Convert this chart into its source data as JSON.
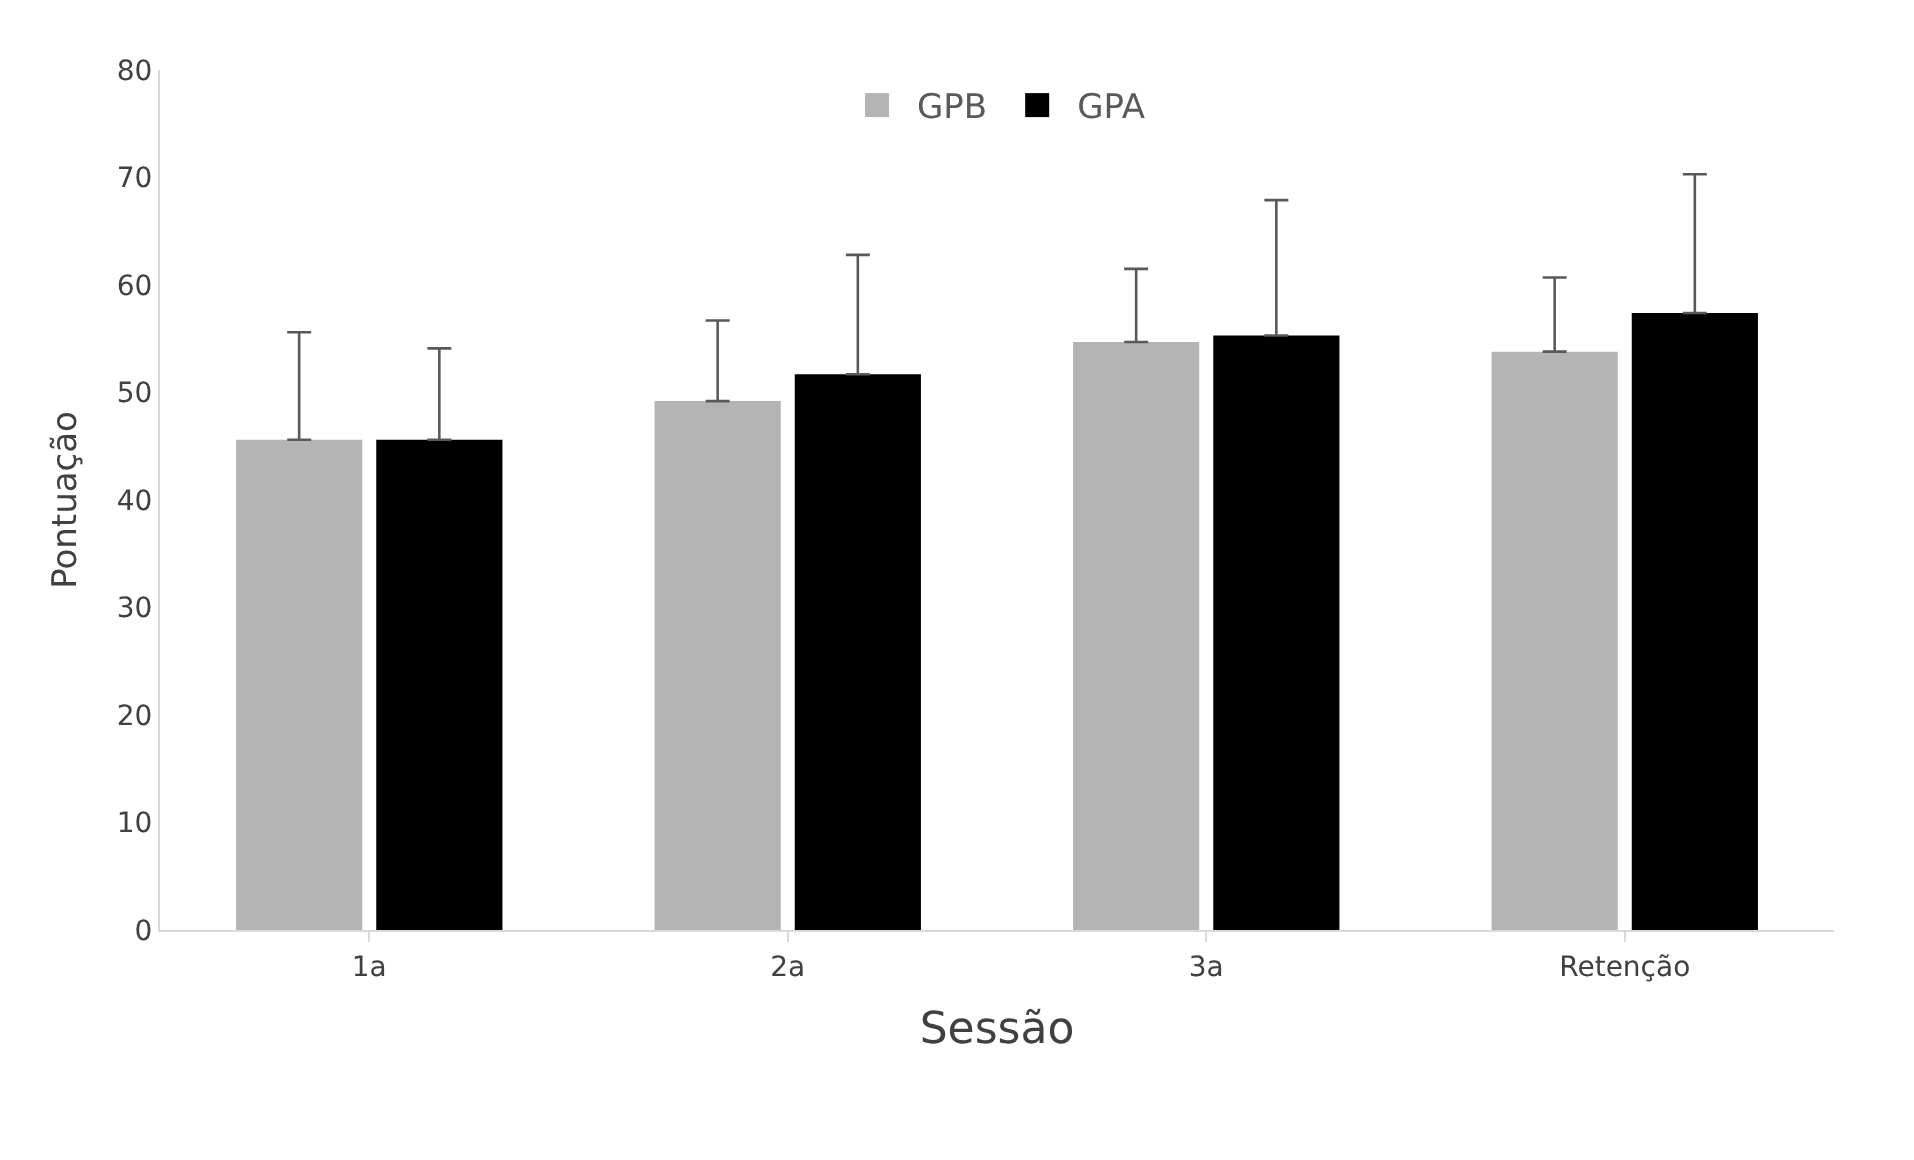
{
  "chart_data": {
    "type": "bar",
    "xlabel": "Sessão",
    "ylabel": "Pontuação",
    "categories": [
      "1a",
      "2a",
      "3a",
      "Retenção"
    ],
    "series": [
      {
        "name": "GPB",
        "color": "#b4b4b4",
        "values": [
          45.6,
          49.2,
          54.7,
          53.8
        ],
        "errors": [
          [
            45.6,
            55.6
          ],
          [
            49.2,
            56.7
          ],
          [
            54.7,
            61.5
          ],
          [
            53.8,
            60.7
          ]
        ]
      },
      {
        "name": "GPA",
        "color": "#000000",
        "values": [
          45.6,
          51.7,
          55.3,
          57.4
        ],
        "errors": [
          [
            45.6,
            54.1
          ],
          [
            51.7,
            62.8
          ],
          [
            55.3,
            67.9
          ],
          [
            57.4,
            70.3
          ]
        ]
      }
    ],
    "ylim": [
      0,
      80
    ],
    "yticks": [
      0,
      10,
      20,
      30,
      40,
      50,
      60,
      70,
      80
    ],
    "grid": false,
    "legend": "top"
  }
}
